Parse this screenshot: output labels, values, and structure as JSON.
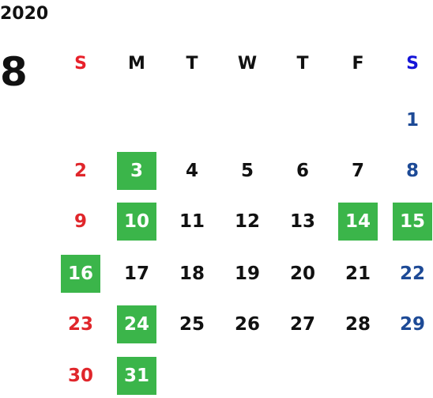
{
  "calendar": {
    "year": "2020",
    "month": "8",
    "weekdays": [
      "S",
      "M",
      "T",
      "W",
      "T",
      "F",
      "S"
    ],
    "first_weekday_index": 6,
    "days_in_month": 31,
    "highlighted_days": [
      3,
      10,
      14,
      15,
      16,
      24,
      31
    ],
    "colors": {
      "sunday_header": "#e8202a",
      "saturday_header": "#1515d8",
      "sunday_date": "#e0262b",
      "saturday_date": "#1d4a96",
      "weekday": "#111111",
      "highlight_bg": "#3bb54a",
      "highlight_text": "#ffffff"
    }
  }
}
